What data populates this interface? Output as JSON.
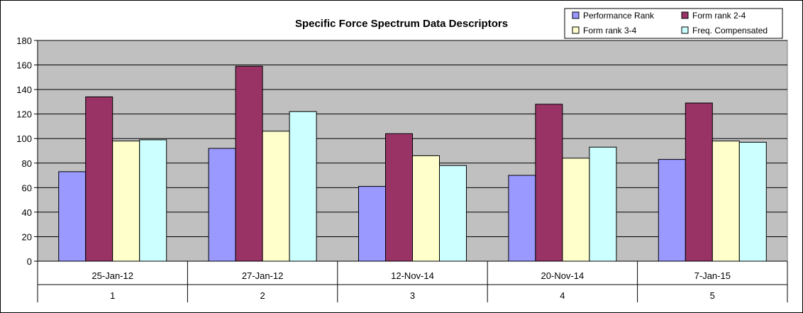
{
  "chart_data": {
    "type": "bar",
    "title": "Specific Force Spectrum Data Descriptors",
    "xlabel": "",
    "ylabel": "",
    "ylim": [
      0,
      180
    ],
    "y_ticks": [
      0,
      20,
      40,
      60,
      80,
      100,
      120,
      140,
      160,
      180
    ],
    "grid": true,
    "legend_position": "top-right",
    "categories": [
      "25-Jan-12",
      "27-Jan-12",
      "12-Nov-14",
      "20-Nov-14",
      "7-Jan-15"
    ],
    "category_numbers": [
      "1",
      "2",
      "3",
      "4",
      "5"
    ],
    "series": [
      {
        "name": "Performance Rank",
        "color": "#9999ff",
        "values": [
          73,
          92,
          61,
          70,
          83
        ]
      },
      {
        "name": "Form rank 2-4",
        "color": "#993366",
        "values": [
          134,
          159,
          104,
          128,
          129
        ]
      },
      {
        "name": "Form rank 3-4",
        "color": "#ffffcc",
        "values": [
          98,
          106,
          86,
          84,
          98
        ]
      },
      {
        "name": "Freq. Compensated",
        "color": "#ccffff",
        "values": [
          99,
          122,
          78,
          93,
          97
        ]
      }
    ],
    "plot_background": "#c0c0c0"
  }
}
